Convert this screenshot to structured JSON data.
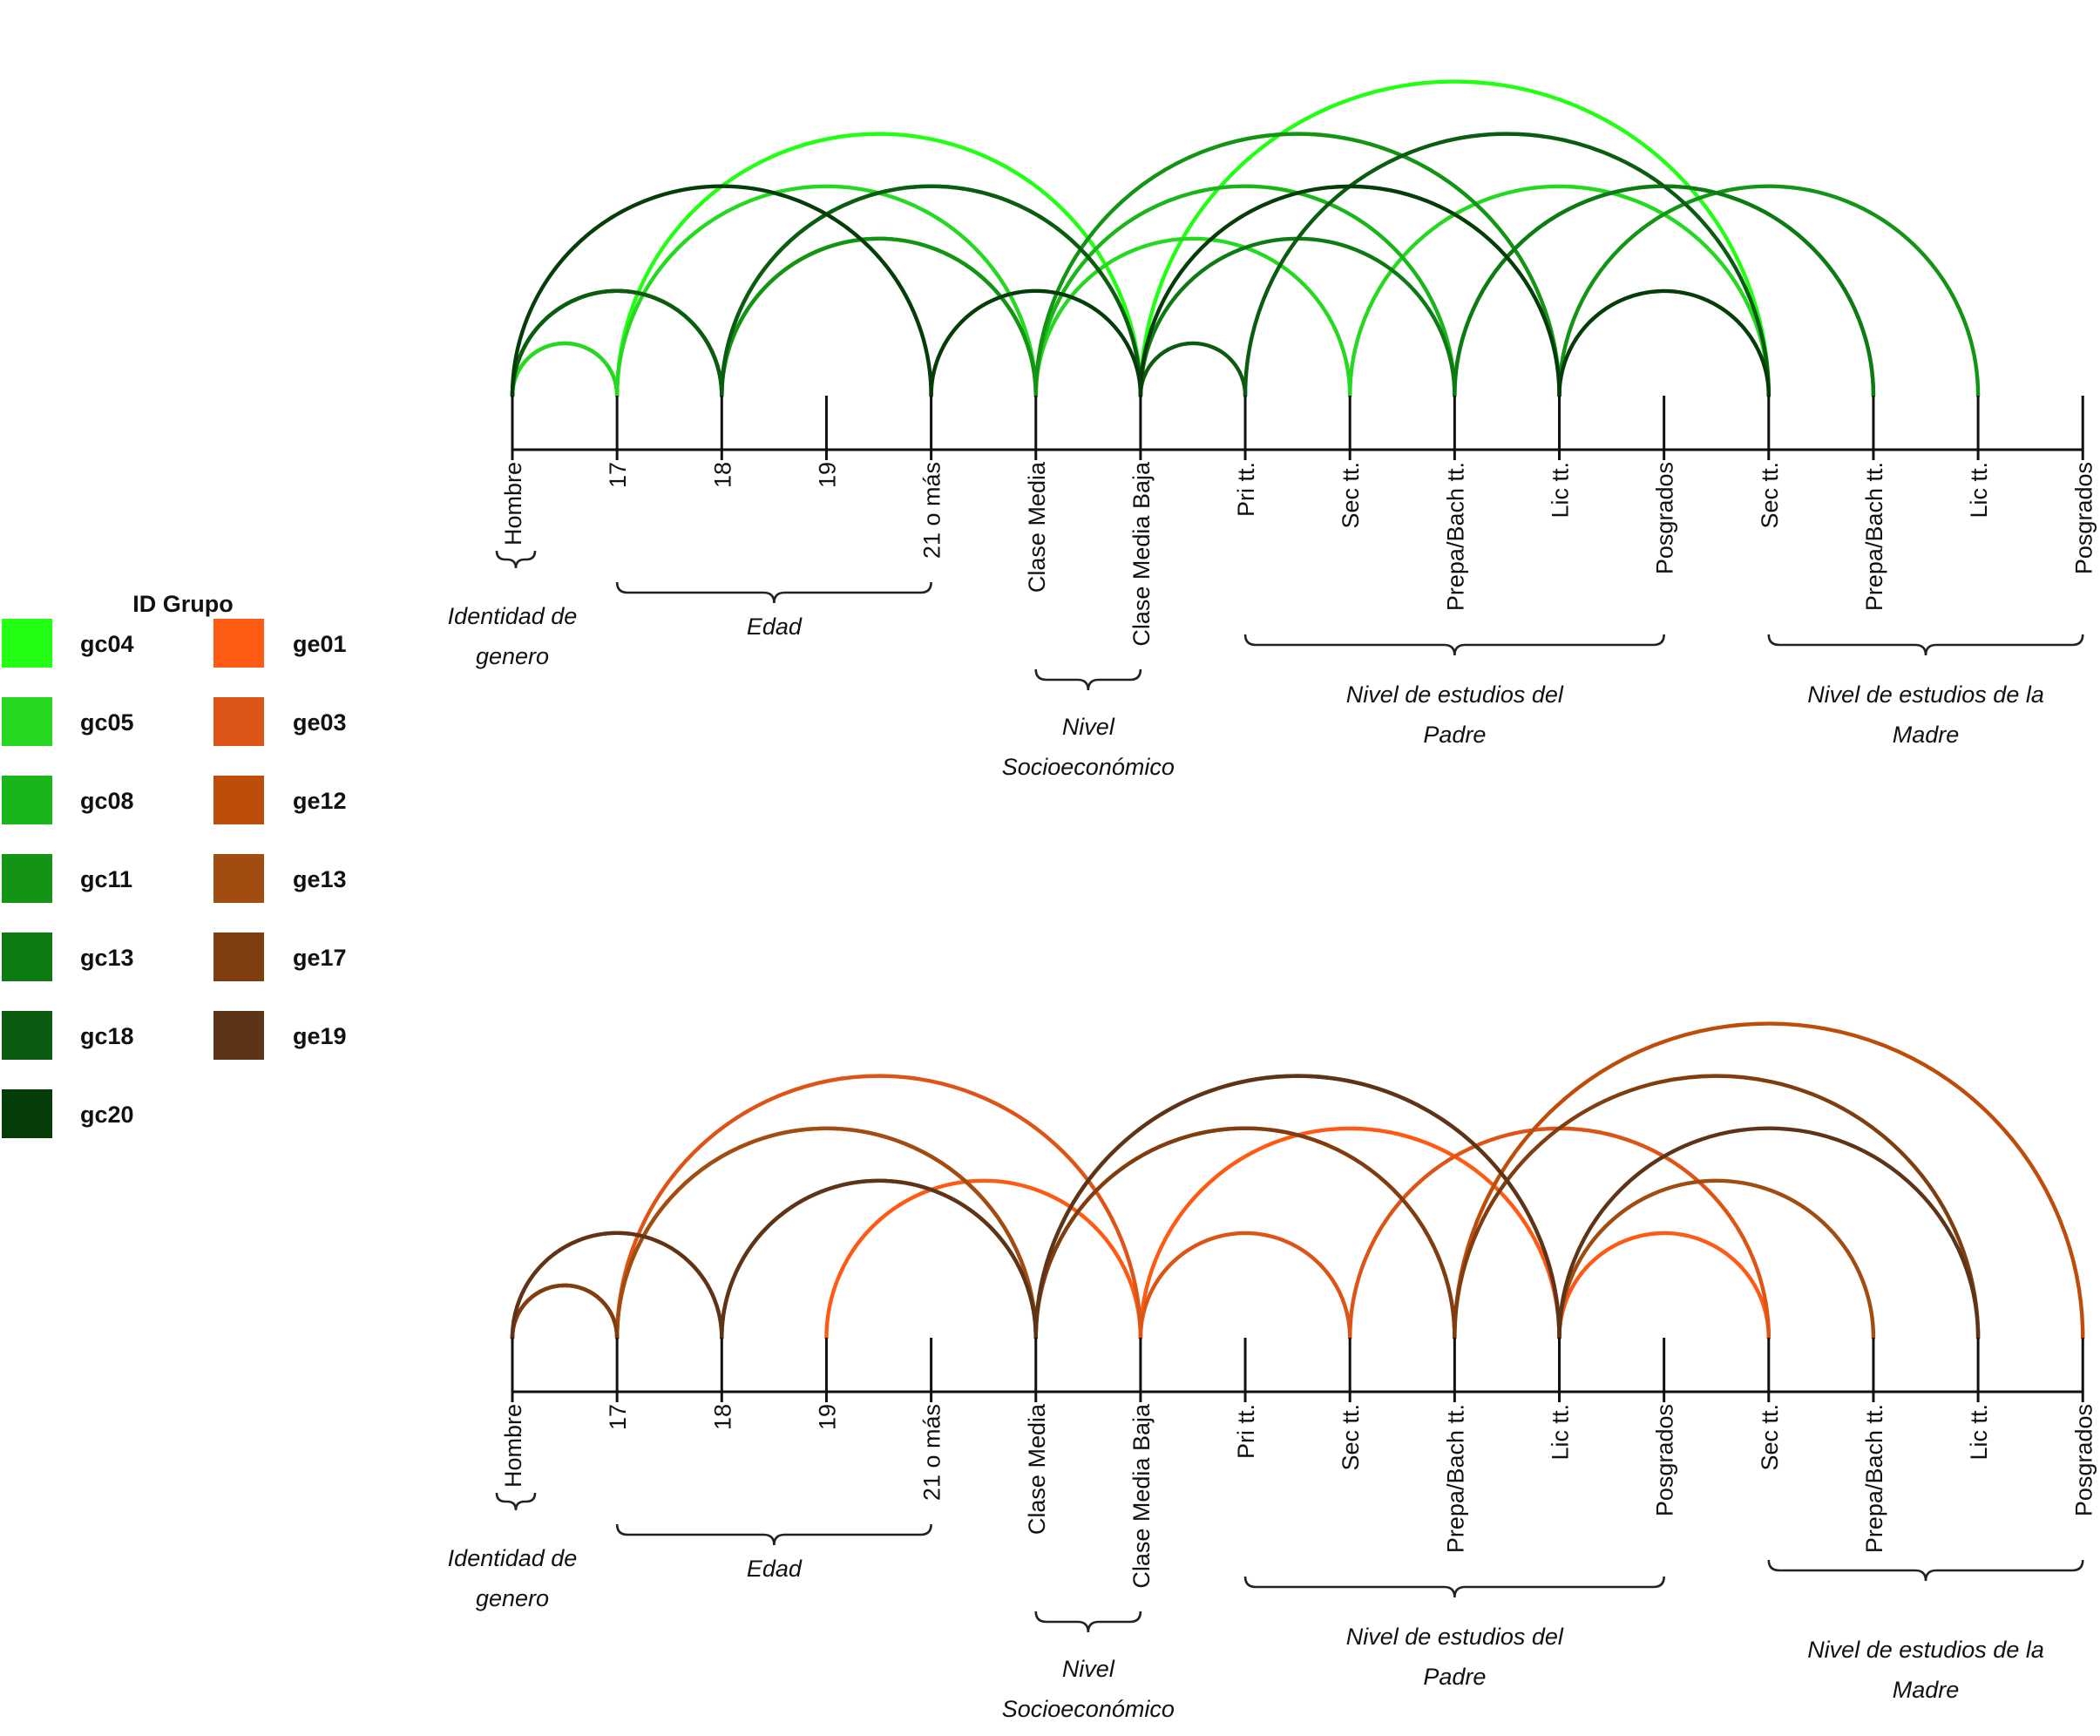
{
  "legend": {
    "title": "ID Grupo",
    "green_groups": [
      {
        "id": "gc04",
        "color": "#22ff14"
      },
      {
        "id": "gc05",
        "color": "#26d822"
      },
      {
        "id": "gc08",
        "color": "#19b519"
      },
      {
        "id": "gc11",
        "color": "#149414"
      },
      {
        "id": "gc13",
        "color": "#0d7a14"
      },
      {
        "id": "gc18",
        "color": "#0b5c10"
      },
      {
        "id": "gc20",
        "color": "#053d08"
      }
    ],
    "orange_groups": [
      {
        "id": "ge01",
        "color": "#ff5a14"
      },
      {
        "id": "ge03",
        "color": "#dc5516"
      },
      {
        "id": "ge12",
        "color": "#bf4d0a"
      },
      {
        "id": "ge13",
        "color": "#a14c10"
      },
      {
        "id": "ge17",
        "color": "#7f3d10"
      },
      {
        "id": "ge19",
        "color": "#5e3418"
      }
    ]
  },
  "axis_labels": [
    "Hombre",
    "17",
    "18",
    "19",
    "21 o más",
    "Clase Media",
    "Clase Media Baja",
    "Pri tt.",
    "Sec tt.",
    "Prepa/Bach  tt.",
    "Lic tt.",
    "Posgrados",
    "Sec tt.",
    "Prepa/Bach  tt.",
    "Lic tt.",
    "Posgrados"
  ],
  "categories": [
    {
      "lines": [
        "Identidad de",
        "genero"
      ],
      "from": 0,
      "to": 0
    },
    {
      "lines": [
        "Edad"
      ],
      "from": 1,
      "to": 4
    },
    {
      "lines": [
        "Nivel",
        "Socioeconómico"
      ],
      "from": 5,
      "to": 6
    },
    {
      "lines": [
        "Nivel de estudios del",
        "Padre"
      ],
      "from": 7,
      "to": 11
    },
    {
      "lines": [
        "Nivel de estudios de la",
        "Madre"
      ],
      "from": 12,
      "to": 15
    }
  ],
  "panels": [
    {
      "name": "green",
      "active_nodes": [
        0,
        1,
        2,
        4,
        5,
        6,
        7,
        8,
        9,
        10,
        12,
        13,
        14
      ],
      "arcs": [
        {
          "from": 0,
          "to": 1,
          "color": "#22ff14"
        },
        {
          "from": 1,
          "to": 6,
          "color": "#22ff14"
        },
        {
          "from": 6,
          "to": 12,
          "color": "#22ff14"
        },
        {
          "from": 0,
          "to": 1,
          "color": "#26d822"
        },
        {
          "from": 1,
          "to": 5,
          "color": "#26d822"
        },
        {
          "from": 5,
          "to": 8,
          "color": "#26d822"
        },
        {
          "from": 8,
          "to": 12,
          "color": "#26d822"
        },
        {
          "from": 0,
          "to": 2,
          "color": "#19b519"
        },
        {
          "from": 2,
          "to": 5,
          "color": "#19b519"
        },
        {
          "from": 5,
          "to": 9,
          "color": "#19b519"
        },
        {
          "from": 9,
          "to": 13,
          "color": "#19b519"
        },
        {
          "from": 0,
          "to": 2,
          "color": "#149414"
        },
        {
          "from": 2,
          "to": 5,
          "color": "#149414"
        },
        {
          "from": 5,
          "to": 10,
          "color": "#149414"
        },
        {
          "from": 10,
          "to": 14,
          "color": "#149414"
        },
        {
          "from": 0,
          "to": 2,
          "color": "#0d7a14"
        },
        {
          "from": 2,
          "to": 6,
          "color": "#0d7a14"
        },
        {
          "from": 6,
          "to": 9,
          "color": "#0d7a14"
        },
        {
          "from": 9,
          "to": 13,
          "color": "#0d7a14"
        },
        {
          "from": 0,
          "to": 2,
          "color": "#0b5c10"
        },
        {
          "from": 2,
          "to": 6,
          "color": "#0b5c10"
        },
        {
          "from": 6,
          "to": 7,
          "color": "#0b5c10"
        },
        {
          "from": 7,
          "to": 12,
          "color": "#0b5c10"
        },
        {
          "from": 0,
          "to": 4,
          "color": "#053d08"
        },
        {
          "from": 4,
          "to": 6,
          "color": "#053d08"
        },
        {
          "from": 6,
          "to": 10,
          "color": "#053d08"
        },
        {
          "from": 10,
          "to": 12,
          "color": "#053d08"
        }
      ]
    },
    {
      "name": "orange",
      "active_nodes": [
        0,
        1,
        2,
        3,
        5,
        6,
        8,
        9,
        10,
        12,
        13,
        14,
        15
      ],
      "arcs": [
        {
          "from": 0,
          "to": 2,
          "color": "#ff5a14"
        },
        {
          "from": 3,
          "to": 6,
          "color": "#ff5a14"
        },
        {
          "from": 6,
          "to": 10,
          "color": "#ff5a14"
        },
        {
          "from": 10,
          "to": 12,
          "color": "#ff5a14"
        },
        {
          "from": 0,
          "to": 1,
          "color": "#dc5516"
        },
        {
          "from": 1,
          "to": 6,
          "color": "#dc5516"
        },
        {
          "from": 6,
          "to": 8,
          "color": "#dc5516"
        },
        {
          "from": 8,
          "to": 12,
          "color": "#dc5516"
        },
        {
          "from": 0,
          "to": 1,
          "color": "#bf4d0a"
        },
        {
          "from": 1,
          "to": 5,
          "color": "#bf4d0a"
        },
        {
          "from": 5,
          "to": 9,
          "color": "#bf4d0a"
        },
        {
          "from": 9,
          "to": 15,
          "color": "#bf4d0a"
        },
        {
          "from": 0,
          "to": 1,
          "color": "#a14c10"
        },
        {
          "from": 1,
          "to": 5,
          "color": "#a14c10"
        },
        {
          "from": 5,
          "to": 10,
          "color": "#a14c10"
        },
        {
          "from": 10,
          "to": 13,
          "color": "#a14c10"
        },
        {
          "from": 0,
          "to": 1,
          "color": "#7f3d10"
        },
        {
          "from": 2,
          "to": 5,
          "color": "#7f3d10"
        },
        {
          "from": 5,
          "to": 9,
          "color": "#7f3d10"
        },
        {
          "from": 9,
          "to": 14,
          "color": "#7f3d10"
        },
        {
          "from": 0,
          "to": 2,
          "color": "#5e3418"
        },
        {
          "from": 2,
          "to": 5,
          "color": "#5e3418"
        },
        {
          "from": 5,
          "to": 10,
          "color": "#5e3418"
        },
        {
          "from": 10,
          "to": 14,
          "color": "#5e3418"
        }
      ]
    }
  ]
}
